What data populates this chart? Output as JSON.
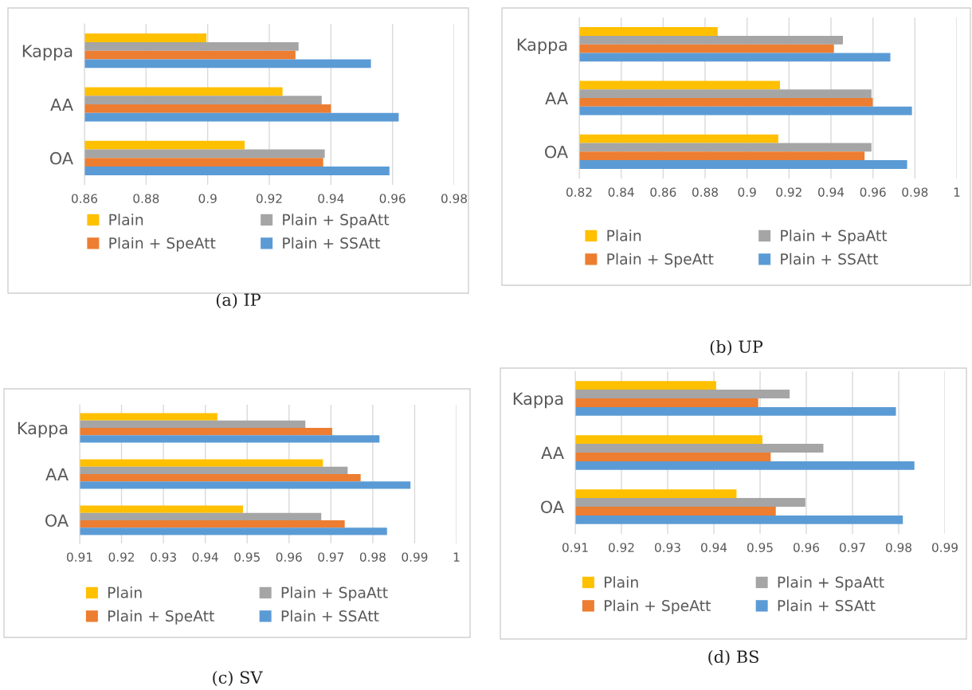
{
  "chart_data": [
    {
      "type": "bar",
      "orientation": "horizontal",
      "title": "(a) IP",
      "categories": [
        "Kappa",
        "AA",
        "OA"
      ],
      "xlim": [
        0.86,
        0.98
      ],
      "xticks": [
        0.86,
        0.88,
        0.9,
        0.92,
        0.94,
        0.96,
        0.98
      ],
      "grid": "x",
      "legend": "bottom",
      "series": [
        {
          "name": "Plain",
          "color": "#ffc000",
          "values": [
            0.8996,
            0.9243,
            0.912
          ]
        },
        {
          "name": "Plain + SpaAtt",
          "color": "#a5a5a5",
          "values": [
            0.9295,
            0.937,
            0.938
          ]
        },
        {
          "name": "Plain + SpeAtt",
          "color": "#ed7d31",
          "values": [
            0.9285,
            0.94,
            0.9375
          ]
        },
        {
          "name": "Plain + SSAtt",
          "color": "#5b9bd5",
          "values": [
            0.953,
            0.962,
            0.959
          ]
        }
      ]
    },
    {
      "type": "bar",
      "orientation": "horizontal",
      "title": "(b) UP",
      "categories": [
        "Kappa",
        "AA",
        "OA"
      ],
      "xlim": [
        0.82,
        1
      ],
      "xticks": [
        0.82,
        0.84,
        0.86,
        0.88,
        0.9,
        0.92,
        0.94,
        0.96,
        0.98,
        1
      ],
      "grid": "x",
      "legend": "bottom",
      "series": [
        {
          "name": "Plain",
          "color": "#ffc000",
          "values": [
            0.886,
            0.9157,
            0.9149
          ]
        },
        {
          "name": "Plain + SpaAtt",
          "color": "#a5a5a5",
          "values": [
            0.9457,
            0.9593,
            0.9593
          ]
        },
        {
          "name": "Plain + SpeAtt",
          "color": "#ed7d31",
          "values": [
            0.9414,
            0.9599,
            0.956
          ]
        },
        {
          "name": "Plain + SSAtt",
          "color": "#5b9bd5",
          "values": [
            0.9683,
            0.9786,
            0.9763
          ]
        }
      ]
    },
    {
      "type": "bar",
      "orientation": "horizontal",
      "title": "(c) SV",
      "categories": [
        "Kappa",
        "AA",
        "OA"
      ],
      "xlim": [
        0.91,
        1
      ],
      "xticks": [
        0.91,
        0.92,
        0.93,
        0.94,
        0.95,
        0.96,
        0.97,
        0.98,
        0.99,
        1
      ],
      "grid": "x",
      "legend": "bottom",
      "series": [
        {
          "name": "Plain",
          "color": "#ffc000",
          "values": [
            0.9429,
            0.9681,
            0.949
          ]
        },
        {
          "name": "Plain + SpaAtt",
          "color": "#a5a5a5",
          "values": [
            0.9639,
            0.974,
            0.9677
          ]
        },
        {
          "name": "Plain + SpeAtt",
          "color": "#ed7d31",
          "values": [
            0.9703,
            0.9771,
            0.9733
          ]
        },
        {
          "name": "Plain + SSAtt",
          "color": "#5b9bd5",
          "values": [
            0.9816,
            0.989,
            0.9834
          ]
        }
      ]
    },
    {
      "type": "bar",
      "orientation": "horizontal",
      "title": "(d) BS",
      "categories": [
        "Kappa",
        "AA",
        "OA"
      ],
      "xlim": [
        0.91,
        0.99
      ],
      "xticks": [
        0.91,
        0.92,
        0.93,
        0.94,
        0.95,
        0.96,
        0.97,
        0.98,
        0.99
      ],
      "grid": "x",
      "legend": "bottom",
      "series": [
        {
          "name": "Plain",
          "color": "#ffc000",
          "values": [
            0.9405,
            0.9505,
            0.9449
          ]
        },
        {
          "name": "Plain + SpaAtt",
          "color": "#a5a5a5",
          "values": [
            0.9564,
            0.9637,
            0.9598
          ]
        },
        {
          "name": "Plain + SpeAtt",
          "color": "#ed7d31",
          "values": [
            0.9496,
            0.9523,
            0.9534
          ]
        },
        {
          "name": "Plain + SSAtt",
          "color": "#5b9bd5",
          "values": [
            0.9794,
            0.9834,
            0.9809
          ]
        }
      ]
    }
  ]
}
